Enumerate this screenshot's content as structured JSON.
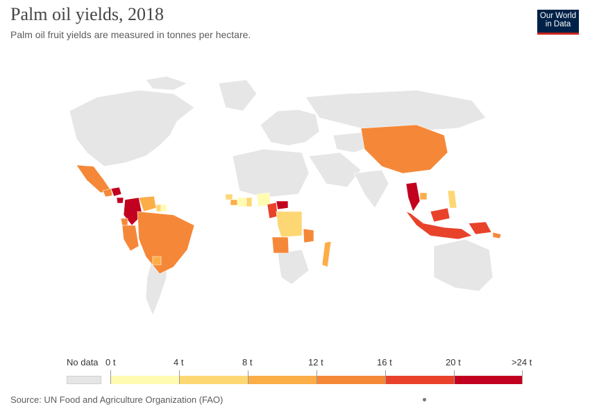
{
  "header": {
    "title": "Palm oil yields, 2018",
    "subtitle": "Palm oil fruit yields are measured in tonnes per hectare.",
    "logo_line1": "Our World",
    "logo_line2": "in Data"
  },
  "legend": {
    "no_data_label": "No data",
    "bins": [
      {
        "label_from": "0 t",
        "color": "#fffbb0"
      },
      {
        "label_from": "4 t",
        "color": "#fdd773"
      },
      {
        "label_from": "8 t",
        "color": "#fbad47"
      },
      {
        "label_from": "12 t",
        "color": "#f58838"
      },
      {
        "label_from": "16 t",
        "color": "#e8422b"
      },
      {
        "label_from": "20 t",
        "color": "#c2001f"
      }
    ],
    "last_label": ">24 t",
    "no_data_color": "#e6e6e6"
  },
  "footer": {
    "source": "Source: UN Food and Agriculture Organization (FAO)"
  },
  "map_data": {
    "metric": "Palm oil yield (t/ha)",
    "year": 2018,
    "regions": [
      {
        "name": "Mexico",
        "color": "#f58838"
      },
      {
        "name": "Guatemala",
        "color": "#f58838"
      },
      {
        "name": "Honduras",
        "color": "#c2001f"
      },
      {
        "name": "Costa Rica",
        "color": "#c2001f"
      },
      {
        "name": "Colombia",
        "color": "#c2001f"
      },
      {
        "name": "Venezuela",
        "color": "#fbad47"
      },
      {
        "name": "Ecuador",
        "color": "#f58838"
      },
      {
        "name": "Peru",
        "color": "#f58838"
      },
      {
        "name": "Brazil",
        "color": "#f58838"
      },
      {
        "name": "Paraguay",
        "color": "#fbad47"
      },
      {
        "name": "Suriname",
        "color": "#fffbb0"
      },
      {
        "name": "Guyana",
        "color": "#fdd773"
      },
      {
        "name": "Sierra Leone",
        "color": "#fdd773"
      },
      {
        "name": "Liberia",
        "color": "#fbad47"
      },
      {
        "name": "Cote d'Ivoire",
        "color": "#fffbb0"
      },
      {
        "name": "Ghana",
        "color": "#fdd773"
      },
      {
        "name": "Nigeria",
        "color": "#fffbb0"
      },
      {
        "name": "Cameroon",
        "color": "#e8422b"
      },
      {
        "name": "Central African Republic",
        "color": "#c2001f"
      },
      {
        "name": "DR Congo",
        "color": "#fdd773"
      },
      {
        "name": "Angola",
        "color": "#f58838"
      },
      {
        "name": "Tanzania",
        "color": "#f58838"
      },
      {
        "name": "Madagascar",
        "color": "#fbad47"
      },
      {
        "name": "China",
        "color": "#f58838"
      },
      {
        "name": "Thailand",
        "color": "#c2001f"
      },
      {
        "name": "Cambodia",
        "color": "#fbad47"
      },
      {
        "name": "Philippines",
        "color": "#fdd773"
      },
      {
        "name": "Malaysia",
        "color": "#e8422b"
      },
      {
        "name": "Indonesia",
        "color": "#e8422b"
      },
      {
        "name": "Papua New Guinea",
        "color": "#e8422b"
      },
      {
        "name": "Solomon Islands",
        "color": "#f58838"
      }
    ]
  }
}
